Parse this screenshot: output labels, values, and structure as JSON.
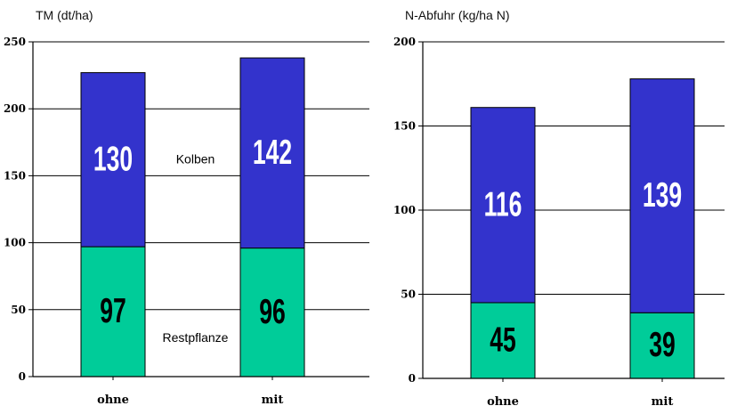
{
  "colors": {
    "restpflanze": "#00cc99",
    "kolben": "#3333cc",
    "label_on_blue": "#ffffff",
    "label_on_green": "#000000"
  },
  "chart_data": [
    {
      "type": "bar",
      "stacked": true,
      "title": "",
      "ylabel": "TM (dt/ha)",
      "xlabel": "",
      "categories": [
        "ohne",
        "mit"
      ],
      "ylim": [
        0,
        250
      ],
      "yticks": [
        0,
        50,
        100,
        150,
        200,
        250
      ],
      "grid": true,
      "series": [
        {
          "name": "Restpflanze",
          "values": [
            97,
            96
          ]
        },
        {
          "name": "Kolben",
          "values": [
            130,
            142
          ]
        }
      ]
    },
    {
      "type": "bar",
      "stacked": true,
      "title": "",
      "ylabel": "N-Abfuhr (kg/ha N)",
      "xlabel": "",
      "categories": [
        "ohne",
        "mit"
      ],
      "ylim": [
        0,
        200
      ],
      "yticks": [
        0,
        50,
        100,
        150,
        200
      ],
      "grid": true,
      "series": [
        {
          "name": "",
          "values": [
            45,
            39
          ]
        },
        {
          "name": "",
          "values": [
            116,
            139
          ]
        }
      ]
    }
  ]
}
